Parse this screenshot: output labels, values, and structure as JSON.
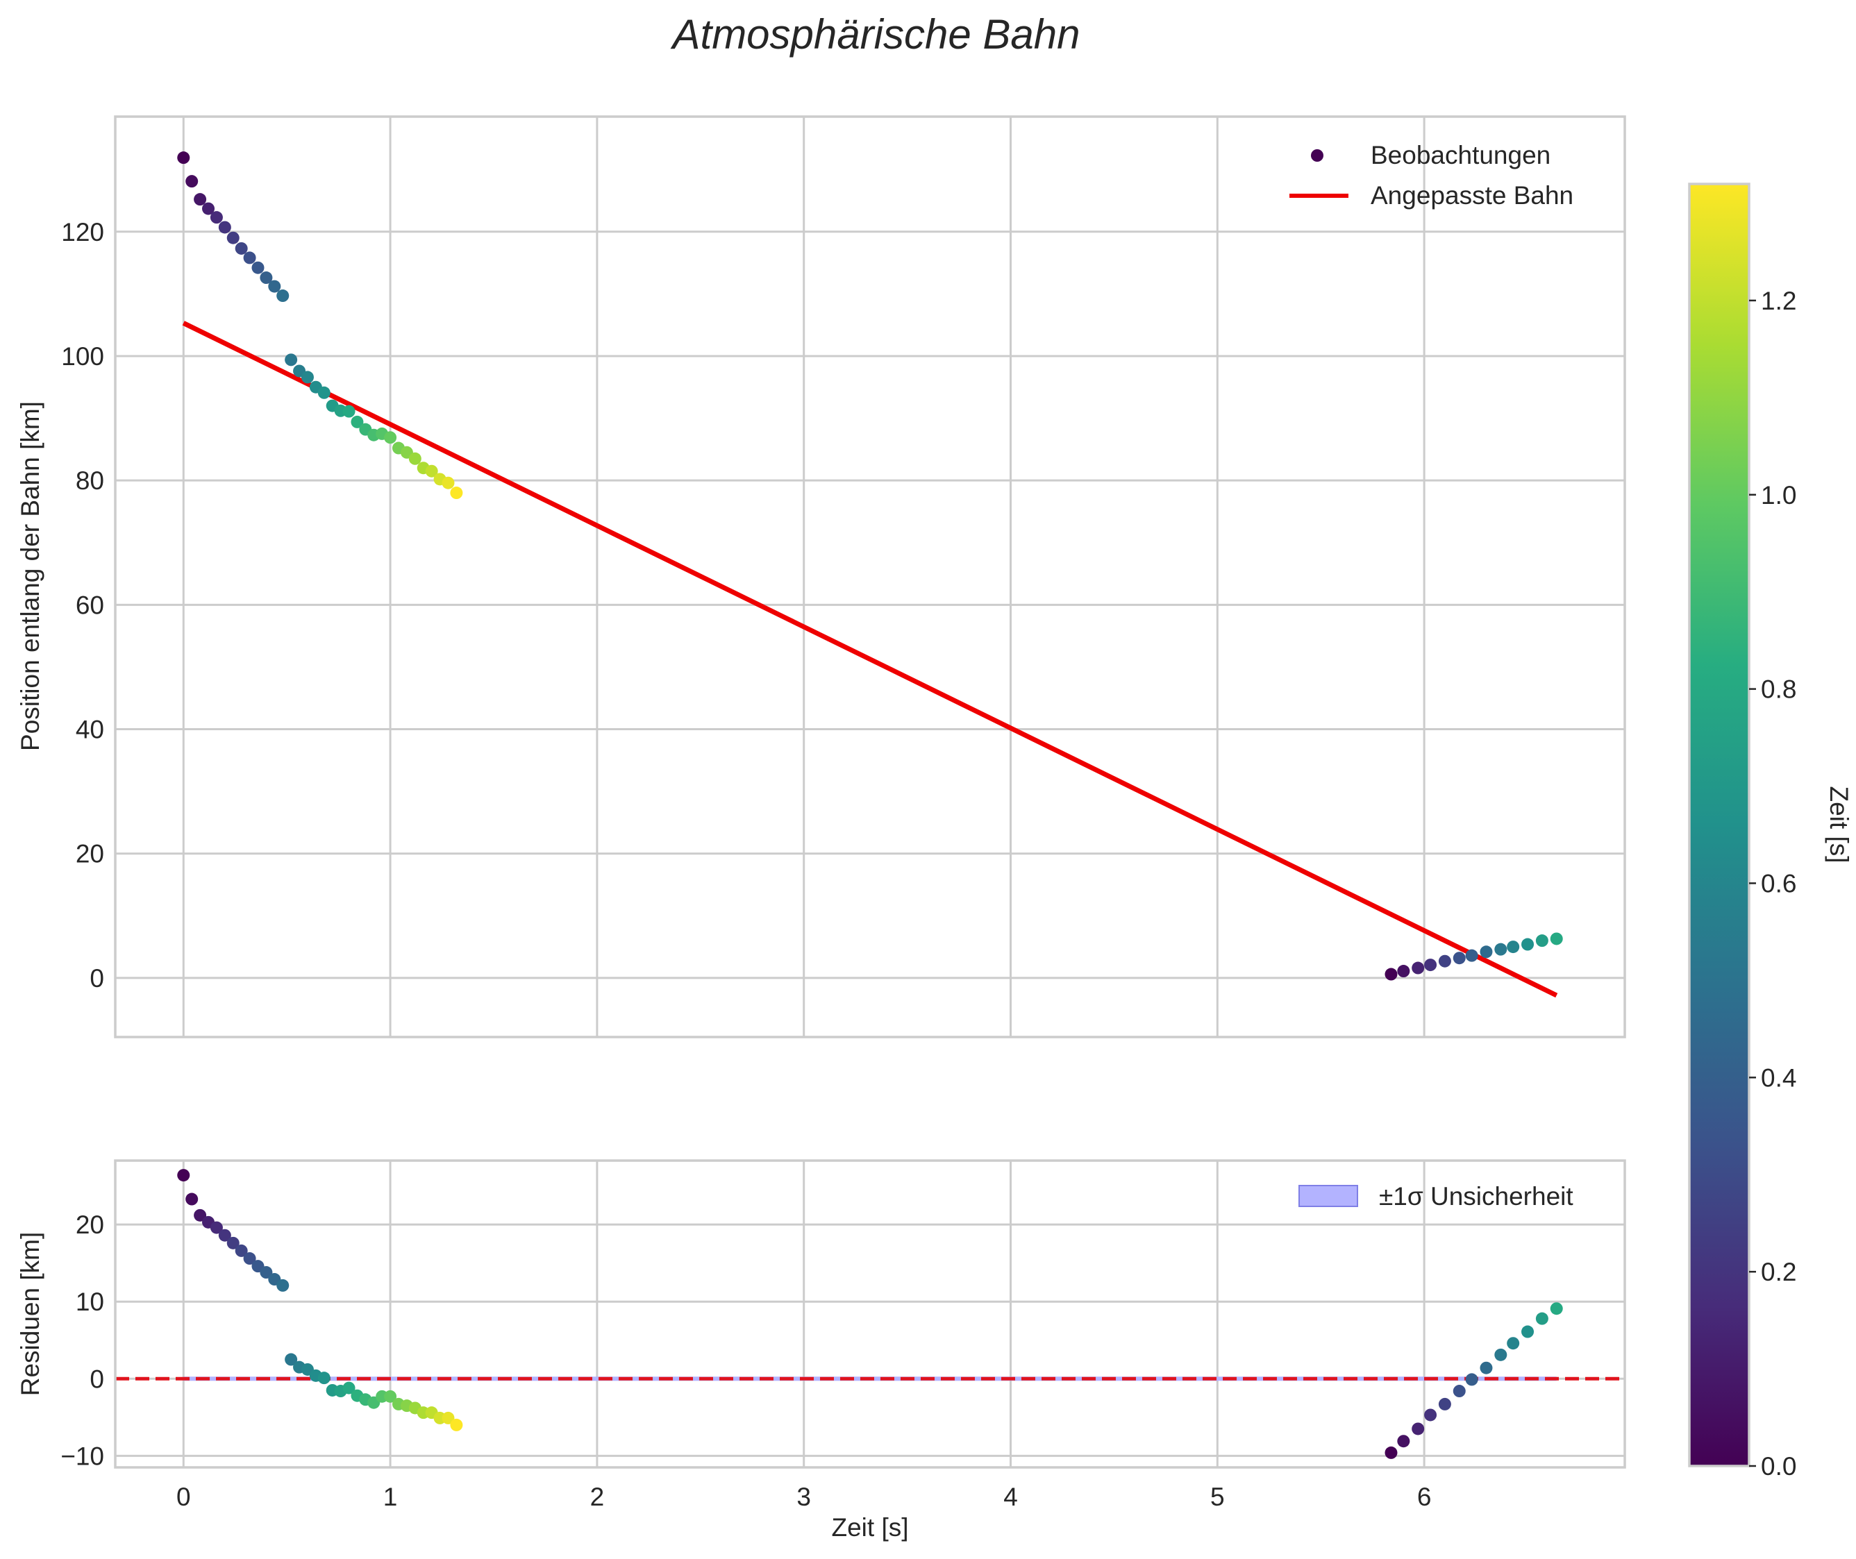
{
  "chart_data": {
    "title": "Atmosphärische Bahn",
    "colormap": "viridis",
    "top": {
      "type": "scatter",
      "ylabel": "Position entlang der Bahn [km]",
      "xlim": [
        -0.33,
        6.97
      ],
      "ylim": [
        -9.5,
        138.5
      ],
      "xticks": [
        0,
        1,
        2,
        3,
        4,
        5,
        6
      ],
      "yticks": [
        0,
        20,
        40,
        60,
        80,
        100,
        120
      ],
      "legend": [
        "Beobachtungen",
        "Angepasste Bahn"
      ],
      "legend_position": "top-right",
      "observations": {
        "t": [
          0.0,
          0.04,
          0.08,
          0.12,
          0.16,
          0.2,
          0.24,
          0.28,
          0.32,
          0.36,
          0.4,
          0.44,
          0.48,
          0.52,
          0.56,
          0.6,
          0.64,
          0.68,
          0.72,
          0.76,
          0.8,
          0.84,
          0.88,
          0.92,
          0.96,
          1.0,
          1.04,
          1.08,
          1.12,
          1.16,
          1.2,
          1.24,
          1.28,
          1.32,
          5.84,
          5.9,
          5.97,
          6.03,
          6.1,
          6.17,
          6.23,
          6.3,
          6.37,
          6.43,
          6.5,
          6.57,
          6.64
        ],
        "position": [
          131.9,
          128.1,
          125.2,
          123.7,
          122.3,
          120.7,
          119.0,
          117.3,
          115.8,
          114.2,
          112.6,
          111.2,
          109.7,
          99.4,
          97.6,
          96.6,
          95.0,
          94.1,
          92.0,
          91.2,
          91.1,
          89.4,
          88.2,
          87.3,
          87.5,
          86.9,
          85.2,
          84.5,
          83.5,
          82.0,
          81.5,
          80.2,
          79.6,
          78.0,
          0.6,
          1.1,
          1.6,
          2.1,
          2.7,
          3.2,
          3.6,
          4.2,
          4.6,
          5.0,
          5.4,
          6.0,
          6.3
        ],
        "color_value": [
          0.0,
          0.04,
          0.08,
          0.12,
          0.16,
          0.2,
          0.24,
          0.28,
          0.32,
          0.36,
          0.4,
          0.44,
          0.48,
          0.52,
          0.56,
          0.6,
          0.64,
          0.68,
          0.72,
          0.76,
          0.8,
          0.84,
          0.88,
          0.92,
          0.96,
          1.0,
          1.04,
          1.08,
          1.12,
          1.16,
          1.2,
          1.24,
          1.28,
          1.32,
          0.0,
          0.06,
          0.13,
          0.19,
          0.26,
          0.33,
          0.39,
          0.46,
          0.53,
          0.59,
          0.66,
          0.73,
          0.8
        ]
      },
      "fit_line": {
        "x": [
          0.0,
          6.64
        ],
        "y": [
          105.3,
          -2.8
        ]
      }
    },
    "bottom": {
      "type": "scatter",
      "xlabel": "Zeit [s]",
      "ylabel": "Residuen [km]",
      "xlim": [
        -0.33,
        6.97
      ],
      "ylim": [
        -11.5,
        28.3
      ],
      "xticks": [
        0,
        1,
        2,
        3,
        4,
        5,
        6
      ],
      "yticks": [
        -10,
        0,
        10,
        20
      ],
      "ytick_labels": [
        "−10",
        "0",
        "10",
        "20"
      ],
      "legend": [
        "±1σ Unsicherheit"
      ],
      "legend_position": "top-right",
      "zero_line": 0,
      "residuals": [
        26.4,
        23.3,
        21.2,
        20.3,
        19.6,
        18.6,
        17.6,
        16.6,
        15.6,
        14.6,
        13.8,
        12.9,
        12.1,
        2.5,
        1.5,
        1.2,
        0.4,
        0.1,
        -1.5,
        -1.6,
        -1.2,
        -2.2,
        -2.7,
        -3.1,
        -2.3,
        -2.3,
        -3.3,
        -3.5,
        -3.8,
        -4.4,
        -4.4,
        -5.1,
        -5.1,
        -6.0,
        -9.6,
        -8.1,
        -6.5,
        -4.7,
        -3.3,
        -1.6,
        -0.1,
        1.4,
        3.1,
        4.6,
        6.1,
        7.8,
        9.1
      ]
    },
    "colorbar": {
      "label": "Zeit [s]",
      "ticks": [
        0.0,
        0.2,
        0.4,
        0.6,
        0.8,
        1.0,
        1.2
      ],
      "tick_labels": [
        "0.0",
        "0.2",
        "0.4",
        "0.6",
        "0.8",
        "1.0",
        "1.2"
      ],
      "range": [
        0.0,
        1.32
      ]
    }
  },
  "colors": {
    "fit_line": "#ee0000",
    "zero_line": "#e0141e",
    "uncertainty_fill": "#b3b3ff",
    "uncertainty_edge": "#7f7fe6",
    "grid": "#cccccc"
  }
}
